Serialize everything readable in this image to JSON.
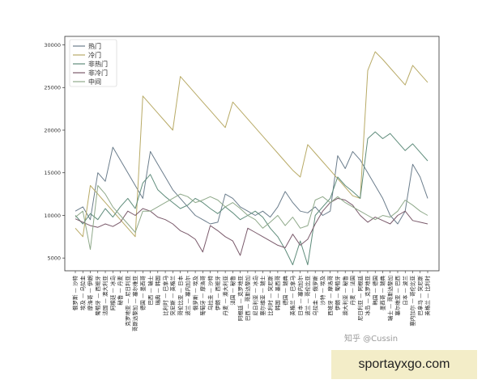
{
  "chart_data": {
    "type": "line",
    "title": "",
    "xlabel": "",
    "ylabel": "",
    "ylim": [
      3500,
      31000
    ],
    "yticks": [
      5000,
      10000,
      15000,
      20000,
      25000,
      30000
    ],
    "legend_position": "top-left",
    "grid": false,
    "categories": [
      "俄罗斯 — 沙特",
      "埃及 — 乌拉圭",
      "摩洛哥 — 伊朗",
      "葡萄牙 — 西班牙",
      "法国 — 澳大利亚",
      "阿根廷 — 冰岛",
      "秘鲁 — 丹麦",
      "克罗地亚 — 尼日利亚",
      "哥斯达黎加 — 塞尔维亚",
      "德国 — 墨西哥",
      "巴西 — 瑞士",
      "瑞典 — 韩国",
      "比利时 — 巴拿马",
      "突尼斯 — 英格兰",
      "哥伦比亚 — 日本",
      "波兰 — 塞内加尔",
      "俄罗斯 — 埃及",
      "葡萄牙 — 摩洛哥",
      "乌拉圭 — 沙特",
      "伊朗 — 西班牙",
      "丹麦 — 澳大利亚",
      "法国 — 秘鲁",
      "阿根廷 — 克罗地亚",
      "巴西 — 哥斯达黎加",
      "尼日利亚 — 冰岛",
      "塞尔维亚 — 瑞士",
      "比利时 — 突尼斯",
      "韩国 — 墨西哥",
      "德国 — 瑞典",
      "英格兰 — 巴拿马",
      "日本 — 塞内加尔",
      "波兰 — 哥伦比亚",
      "乌拉圭 — 俄罗斯",
      "沙特 — 埃及",
      "西班牙 — 摩洛哥",
      "伊朗 — 葡萄牙",
      "澳大利亚 — 秘鲁",
      "丹麦 — 法国",
      "尼日利亚 — 阿根廷",
      "冰岛 — 克罗地亚",
      "韩国 — 德国",
      "墨西哥 — 瑞典",
      "瑞士 — 哥斯达黎加",
      "塞尔维亚 — 巴西",
      "日本 — 波兰",
      "塞内加尔 — 哥伦比亚",
      "巴拿马 — 突尼斯",
      "英格兰 — 比利时"
    ],
    "series": [
      {
        "name": "热门",
        "color": "#6b7d8c",
        "values": [
          10500,
          11000,
          9500,
          15000,
          14000,
          18000,
          16500,
          15000,
          13500,
          12000,
          17500,
          16000,
          14500,
          13000,
          12000,
          11000,
          10000,
          9500,
          9000,
          9200,
          12500,
          12000,
          11000,
          10500,
          10000,
          10500,
          9800,
          11000,
          12800,
          11500,
          10500,
          10300,
          11000,
          10000,
          10500,
          17000,
          15500,
          17500,
          16500,
          15000,
          13500,
          12000,
          10000,
          9000,
          10500,
          16000,
          14500,
          12000
        ]
      },
      {
        "name": "冷门",
        "color": "#b8aa66",
        "values": [
          8500,
          7500,
          13500,
          12500,
          11500,
          10500,
          9500,
          8500,
          7500,
          24000,
          23000,
          22000,
          21000,
          20000,
          26300,
          25300,
          24300,
          23300,
          22300,
          21300,
          20300,
          23300,
          22300,
          21300,
          20300,
          19300,
          18300,
          17300,
          16300,
          15300,
          14500,
          18300,
          17300,
          16300,
          15300,
          14300,
          13300,
          12300,
          12000,
          27000,
          29200,
          28300,
          27300,
          26300,
          25300,
          27600,
          26600,
          25600
        ]
      },
      {
        "name": "非热门",
        "color": "#5f8c7b",
        "values": [
          10000,
          9000,
          10200,
          9500,
          10800,
          9800,
          11000,
          12000,
          10800,
          13800,
          14800,
          13000,
          12200,
          11500,
          10800,
          11200,
          12000,
          11500,
          10800,
          10200,
          11000,
          10300,
          9500,
          10000,
          10500,
          9800,
          8500,
          7500,
          6000,
          4200,
          7000,
          4200,
          10000,
          11000,
          12000,
          14500,
          13500,
          12800,
          12000,
          19000,
          19800,
          19000,
          19600,
          18600,
          17600,
          18400,
          17400,
          16400
        ]
      },
      {
        "name": "非冷门",
        "color": "#7a5a6b",
        "values": [
          9600,
          9200,
          8800,
          8600,
          9000,
          8700,
          9200,
          10500,
          10000,
          10800,
          10500,
          9800,
          9500,
          9000,
          8200,
          7800,
          7200,
          5700,
          8800,
          8200,
          7500,
          7000,
          5300,
          8500,
          8000,
          7500,
          7000,
          6500,
          6200,
          7800,
          6500,
          7200,
          9000,
          10500,
          11500,
          12000,
          11800,
          11200,
          10000,
          9200,
          9800,
          9400,
          9000,
          10000,
          10500,
          9400,
          9200,
          9000
        ]
      },
      {
        "name": "中间",
        "color": "#8fa98a",
        "values": [
          9800,
          10500,
          6000,
          13500,
          12500,
          11000,
          10000,
          9000,
          8000,
          10500,
          10500,
          11000,
          11500,
          12000,
          12500,
          12200,
          11500,
          11800,
          12200,
          11800,
          11000,
          11500,
          10800,
          10000,
          9500,
          8500,
          9200,
          10000,
          8800,
          9800,
          8500,
          8800,
          11800,
          12200,
          11500,
          12200,
          11500,
          11000,
          10500,
          10000,
          9500,
          10000,
          9800,
          10500,
          11800,
          11200,
          10500,
          10000
        ]
      }
    ]
  },
  "watermark": "知乎 @Cussin",
  "site_label": "sportayxgo.com"
}
